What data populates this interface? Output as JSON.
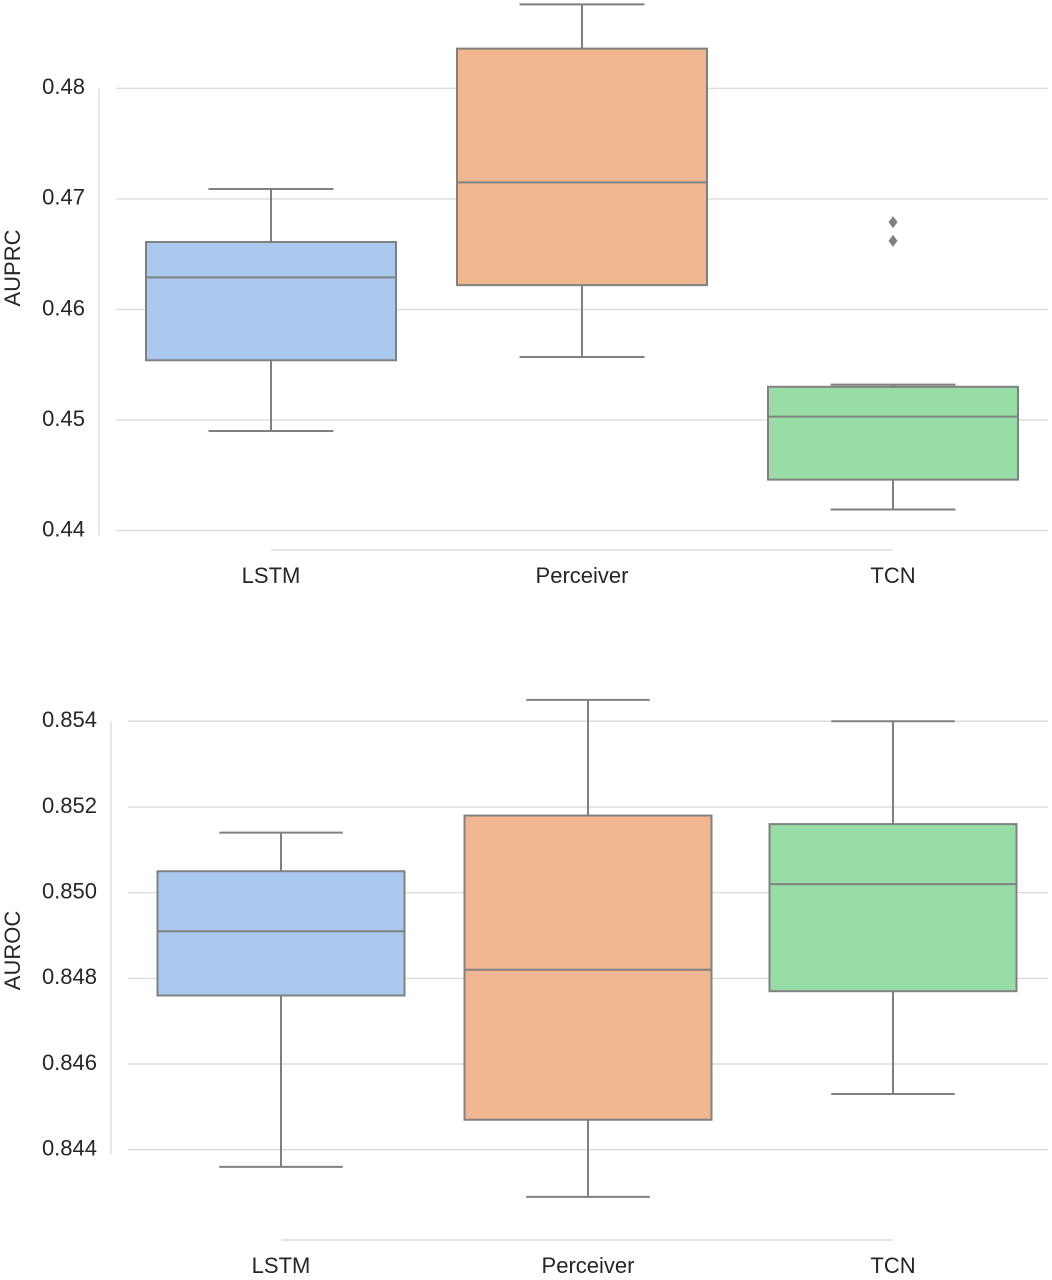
{
  "chart_data": [
    {
      "type": "box",
      "ylabel": "AUPRC",
      "categories": [
        "LSTM",
        "Perceiver",
        "TCN"
      ],
      "colors": [
        "#abc9ee",
        "#f0b690",
        "#98dca6"
      ],
      "boxes": [
        {
          "whislo": 0.449,
          "q1": 0.4554,
          "med": 0.4629,
          "q3": 0.4661,
          "whishi": 0.4709,
          "fliers": []
        },
        {
          "whislo": 0.4557,
          "q1": 0.4622,
          "med": 0.4715,
          "q3": 0.4836,
          "whishi": 0.4876,
          "fliers": []
        },
        {
          "whislo": 0.4419,
          "q1": 0.4446,
          "med": 0.4503,
          "q3": 0.453,
          "whishi": 0.4532,
          "fliers": [
            0.4662,
            0.4679
          ]
        }
      ],
      "ylim": [
        0.4395,
        0.488
      ],
      "yticks": [
        0.44,
        0.45,
        0.46,
        0.47,
        0.48
      ],
      "grid": true
    },
    {
      "type": "box",
      "ylabel": "AUROC",
      "categories": [
        "LSTM",
        "Perceiver",
        "TCN"
      ],
      "colors": [
        "#abc9ee",
        "#f0b690",
        "#98dca6"
      ],
      "boxes": [
        {
          "whislo": 0.8436,
          "q1": 0.8476,
          "med": 0.8491,
          "q3": 0.8505,
          "whishi": 0.8514,
          "fliers": []
        },
        {
          "whislo": 0.8429,
          "q1": 0.8447,
          "med": 0.8482,
          "q3": 0.8518,
          "whishi": 0.8545,
          "fliers": []
        },
        {
          "whislo": 0.8453,
          "q1": 0.8477,
          "med": 0.8502,
          "q3": 0.8516,
          "whishi": 0.854,
          "fliers": []
        }
      ],
      "ylim": [
        0.8425,
        0.8548
      ],
      "yticks": [
        0.844,
        0.846,
        0.848,
        {
          "value": 0.85,
          "label": "0.850"
        },
        0.852,
        0.854
      ],
      "grid": true
    }
  ]
}
